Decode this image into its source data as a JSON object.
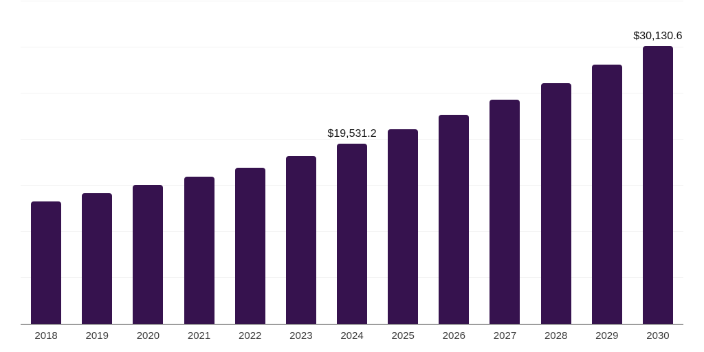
{
  "chart_data": {
    "type": "bar",
    "title": "",
    "xlabel": "",
    "ylabel": "",
    "categories": [
      "2018",
      "2019",
      "2020",
      "2021",
      "2022",
      "2023",
      "2024",
      "2025",
      "2026",
      "2027",
      "2028",
      "2029",
      "2030"
    ],
    "values": [
      13250,
      14200,
      15070,
      15950,
      16940,
      18190,
      19531.2,
      21100,
      22670,
      24310,
      26140,
      28140,
      30130.6
    ],
    "value_labels": {
      "2024": "$19,531.2",
      "2030": "$30,130.6"
    },
    "ylim": [
      0,
      35000
    ],
    "gridline_interval": 5000,
    "grid": true,
    "legend": "none",
    "colors": {
      "bar": "#36124E",
      "axis_line": "#3a3a3a",
      "gridline": "#f2f2f2",
      "tick_label": "#3c3c3c",
      "value_label": "#111111",
      "background": "#ffffff"
    }
  }
}
